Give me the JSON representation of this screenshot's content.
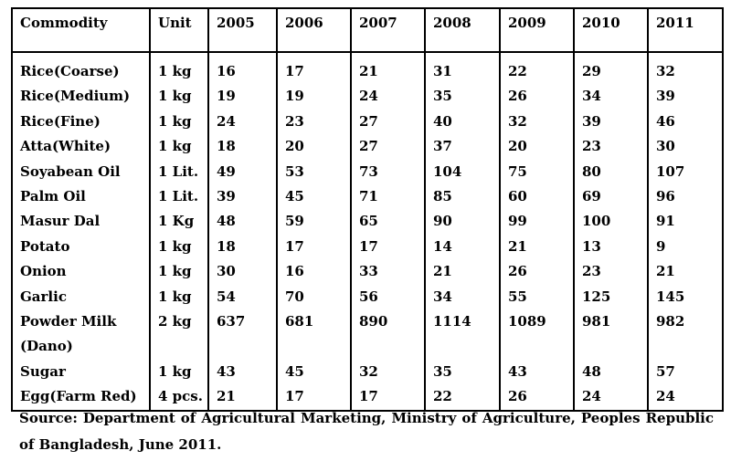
{
  "table": {
    "headers": [
      "Commodity",
      "Unit",
      "2005",
      "2006",
      "2007",
      "2008",
      "2009",
      "2010",
      "2011"
    ],
    "rows": [
      [
        "Rice(Coarse)",
        "1 kg",
        "16",
        "17",
        "21",
        "31",
        "22",
        "29",
        "32"
      ],
      [
        "Rice(Medium)",
        "1 kg",
        "19",
        "19",
        "24",
        "35",
        "26",
        "34",
        "39"
      ],
      [
        "Rice(Fine)",
        "1 kg",
        "24",
        "23",
        "27",
        "40",
        "32",
        "39",
        "46"
      ],
      [
        "Atta(White)",
        "1 kg",
        "18",
        "20",
        "27",
        "37",
        "20",
        "23",
        "30"
      ],
      [
        "Soyabean Oil",
        "1 Lit.",
        "49",
        "53",
        "73",
        "104",
        "75",
        "80",
        "107"
      ],
      [
        "Palm Oil",
        "1 Lit.",
        "39",
        "45",
        "71",
        "85",
        "60",
        "69",
        "96"
      ],
      [
        "Masur Dal",
        "1 Kg",
        "48",
        "59",
        "65",
        "90",
        "99",
        "100",
        "91"
      ],
      [
        "Potato",
        "1 kg",
        "18",
        "17",
        "17",
        "14",
        "21",
        "13",
        "9"
      ],
      [
        "Onion",
        "1 kg",
        "30",
        "16",
        "33",
        "21",
        "26",
        "23",
        "21"
      ],
      [
        "Garlic",
        "1 kg",
        "54",
        "70",
        "56",
        "34",
        "55",
        "125",
        "145"
      ],
      [
        "Powder Milk (Dano)",
        "2 kg",
        "637",
        "681",
        "890",
        "1114",
        "1089",
        "981",
        "982"
      ],
      [
        "Sugar",
        "1 kg",
        "43",
        "45",
        "32",
        "35",
        "43",
        "48",
        "57"
      ],
      [
        "Egg(Farm Red)",
        "4 pcs.",
        "21",
        "17",
        "17",
        "22",
        "26",
        "24",
        "24"
      ]
    ]
  },
  "source_note": "Source: Department of Agricultural Marketing, Ministry of Agriculture, Peoples Republic of Bangladesh, June 2011."
}
